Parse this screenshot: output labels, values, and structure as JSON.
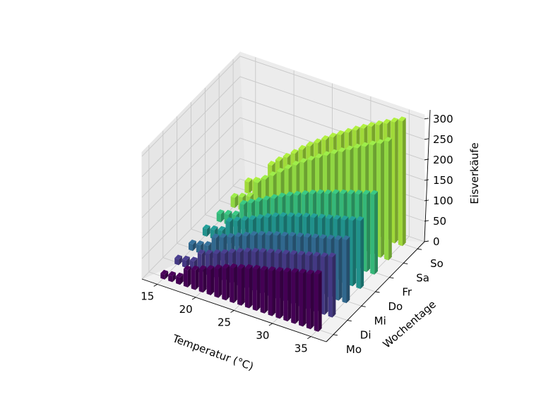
{
  "chart_data": {
    "type": "bar3d",
    "xlabel": "Temperatur (°C)",
    "ylabel": "Wochentage",
    "zlabel": "Eisverkäufe",
    "x_ticks": [
      "15",
      "20",
      "25",
      "30",
      "35"
    ],
    "y_ticks": [
      "Mo",
      "Di",
      "Mi",
      "Do",
      "Fr",
      "Sa",
      "So"
    ],
    "z_ticks": [
      "0",
      "50",
      "100",
      "150",
      "200",
      "250",
      "300"
    ],
    "xlim": [
      13,
      37
    ],
    "zlim": [
      0,
      310
    ],
    "grid": true,
    "temperatures": [
      15,
      16,
      17,
      18,
      19,
      20,
      21,
      22,
      23,
      24,
      25,
      26,
      27,
      28,
      29,
      30,
      31,
      32,
      33,
      34,
      35
    ],
    "series": [
      {
        "name": "Mo",
        "color": "#440154",
        "values": [
          12,
          15,
          18,
          42,
          48,
          55,
          62,
          70,
          78,
          85,
          90,
          96,
          101,
          105,
          110,
          115,
          120,
          125,
          130,
          134,
          140
        ]
      },
      {
        "name": "Di",
        "color": "#443983",
        "values": [
          14,
          18,
          22,
          46,
          52,
          59,
          66,
          74,
          82,
          89,
          95,
          101,
          106,
          111,
          116,
          121,
          126,
          131,
          136,
          141,
          147
        ]
      },
      {
        "name": "Mi",
        "color": "#31688e",
        "values": [
          16,
          20,
          25,
          50,
          57,
          64,
          72,
          80,
          88,
          95,
          101,
          107,
          112,
          118,
          123,
          128,
          133,
          138,
          143,
          148,
          154
        ]
      },
      {
        "name": "Do",
        "color": "#21918c",
        "values": [
          18,
          22,
          27,
          55,
          63,
          71,
          79,
          88,
          97,
          105,
          112,
          118,
          124,
          130,
          135,
          140,
          145,
          150,
          155,
          160,
          166
        ]
      },
      {
        "name": "Fr",
        "color": "#35b779",
        "values": [
          20,
          25,
          30,
          62,
          72,
          82,
          92,
          102,
          112,
          121,
          129,
          137,
          145,
          152,
          158,
          165,
          171,
          177,
          183,
          189,
          195
        ]
      },
      {
        "name": "Sa",
        "color": "#90d743",
        "values": [
          25,
          32,
          40,
          80,
          95,
          110,
          125,
          140,
          155,
          168,
          180,
          192,
          204,
          215,
          226,
          237,
          248,
          258,
          268,
          278,
          290
        ]
      },
      {
        "name": "So",
        "color": "#a0da39",
        "values": [
          28,
          36,
          45,
          88,
          105,
          120,
          136,
          152,
          167,
          181,
          195,
          208,
          220,
          232,
          244,
          255,
          266,
          276,
          286,
          296,
          305
        ]
      }
    ]
  }
}
